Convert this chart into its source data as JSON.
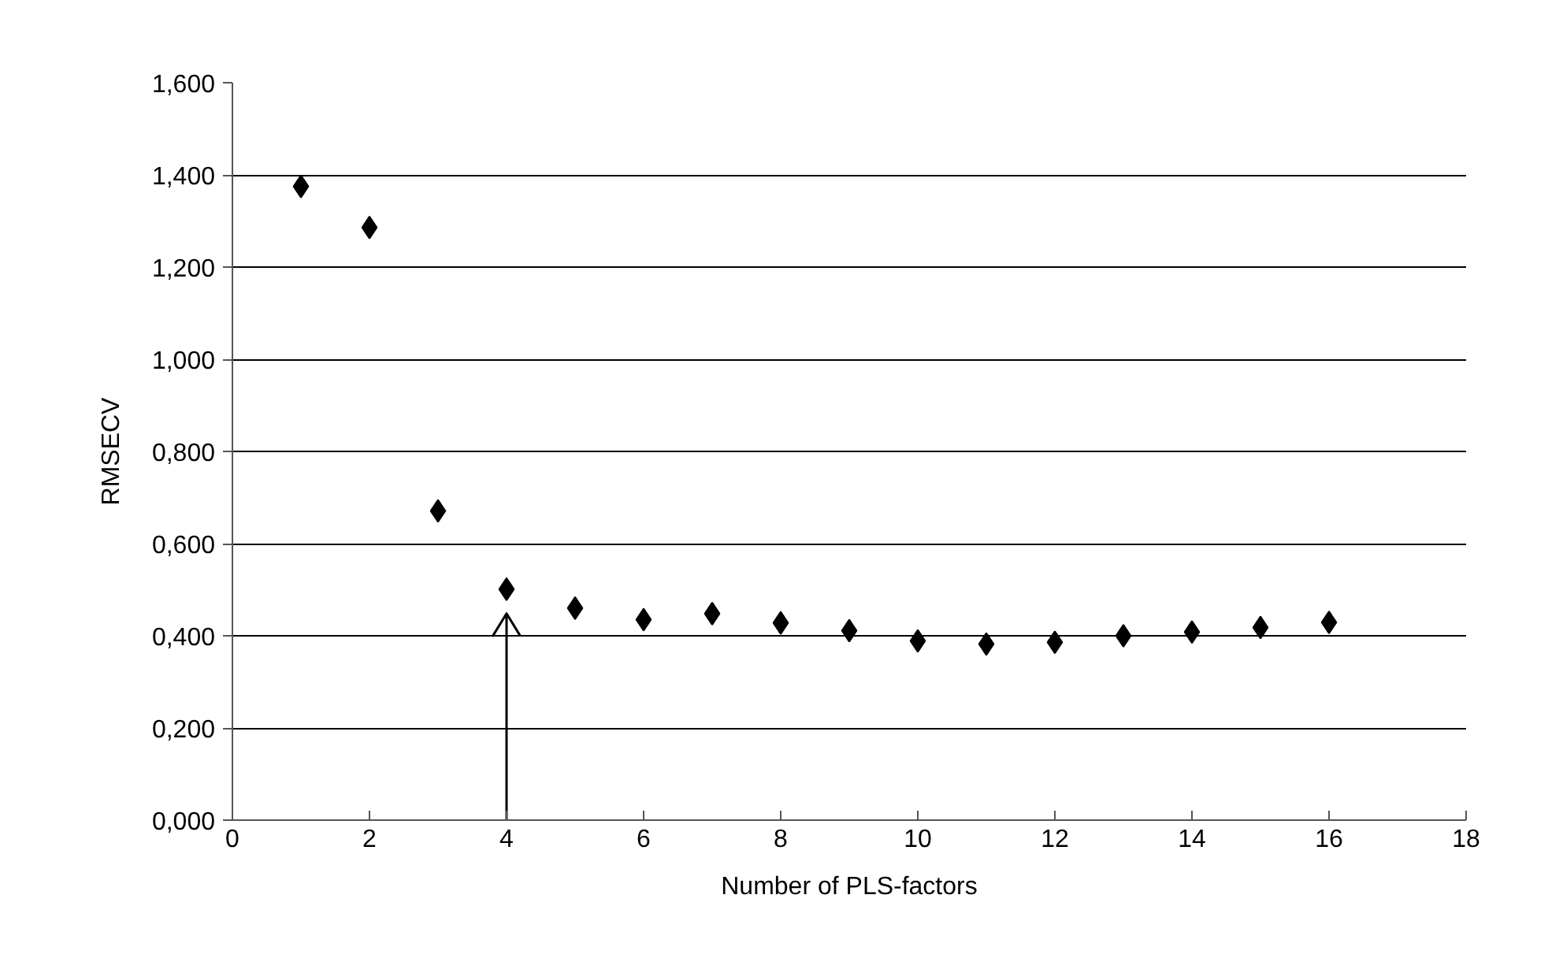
{
  "chart_data": {
    "type": "scatter",
    "xlabel": "Number of PLS-factors",
    "ylabel": "RMSECV",
    "x": [
      1,
      2,
      3,
      4,
      5,
      6,
      7,
      8,
      9,
      10,
      11,
      12,
      13,
      14,
      15,
      16
    ],
    "series": [
      {
        "color": "#000000",
        "values": [
          1.375,
          1.286,
          0.671,
          0.501,
          0.46,
          0.435,
          0.448,
          0.428,
          0.411,
          0.389,
          0.382,
          0.386,
          0.4,
          0.408,
          0.418,
          0.429
        ]
      }
    ],
    "marker": "diamond",
    "grid": "y",
    "xlim": [
      0,
      18
    ],
    "xticks": [
      0,
      2,
      4,
      6,
      8,
      10,
      12,
      14,
      16,
      18
    ],
    "ylim": [
      0,
      1.6
    ],
    "yticks": [
      {
        "value": 0,
        "label": "0,000"
      },
      {
        "value": 0.2,
        "label": "0,200"
      },
      {
        "value": 0.4,
        "label": "0,400"
      },
      {
        "value": 0.6,
        "label": "0,600"
      },
      {
        "value": 0.8,
        "label": "0,800"
      },
      {
        "value": 1.0,
        "label": "1,000"
      },
      {
        "value": 1.2,
        "label": "1,200"
      },
      {
        "value": 1.4,
        "label": "1,400"
      },
      {
        "value": 1.6,
        "label": "1,600"
      }
    ],
    "ref_lines": [
      {
        "axis": "x",
        "value": 4,
        "line_style": "solid"
      }
    ]
  }
}
